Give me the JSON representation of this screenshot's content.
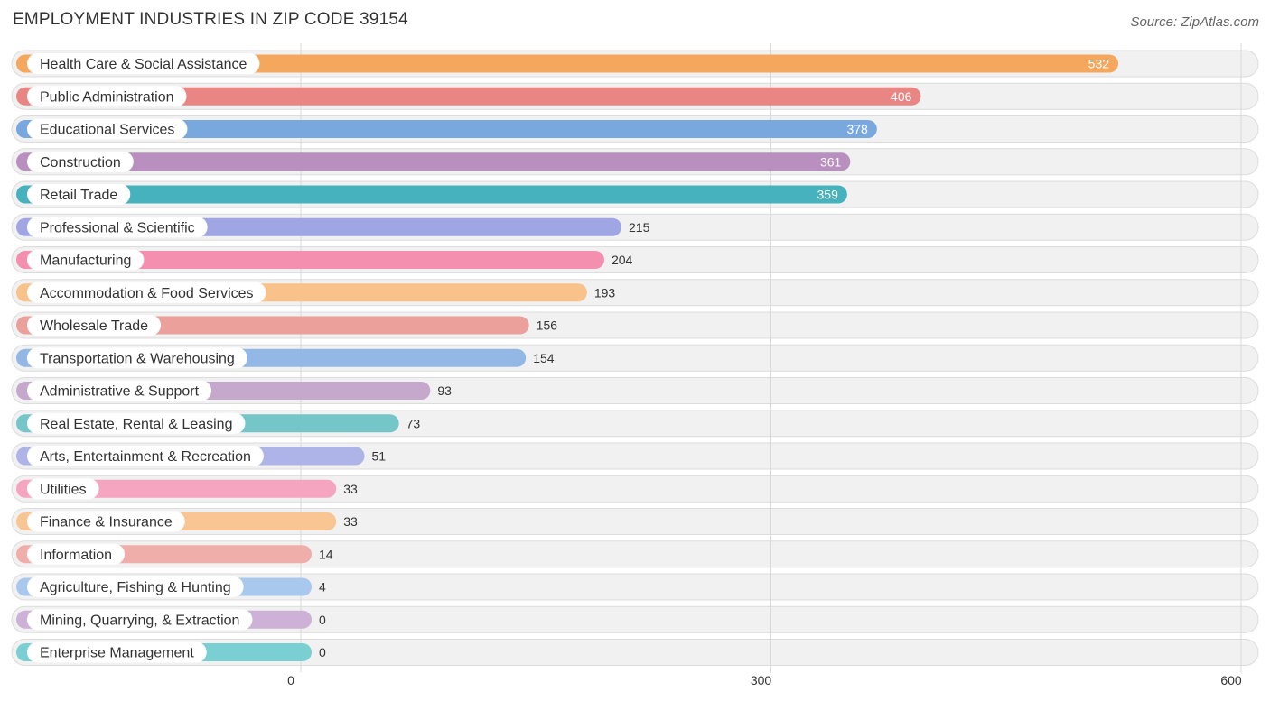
{
  "chart_data": {
    "type": "bar",
    "orientation": "horizontal",
    "title": "EMPLOYMENT INDUSTRIES IN ZIP CODE 39154",
    "source": "Source: ZipAtlas.com",
    "xlim": [
      0,
      600
    ],
    "xticks": [
      0,
      300,
      600
    ],
    "grid": true,
    "categories": [
      "Health Care & Social Assistance",
      "Public Administration",
      "Educational Services",
      "Construction",
      "Retail Trade",
      "Professional & Scientific",
      "Manufacturing",
      "Accommodation & Food Services",
      "Wholesale Trade",
      "Transportation & Warehousing",
      "Administrative & Support",
      "Real Estate, Rental & Leasing",
      "Arts, Entertainment & Recreation",
      "Utilities",
      "Finance & Insurance",
      "Information",
      "Agriculture, Fishing & Hunting",
      "Mining, Quarrying, & Extraction",
      "Enterprise Management"
    ],
    "values": [
      532,
      406,
      378,
      361,
      359,
      215,
      204,
      193,
      156,
      154,
      93,
      73,
      51,
      33,
      33,
      14,
      4,
      0,
      0
    ],
    "colors": [
      "#f6a75e",
      "#e98583",
      "#79a8de",
      "#b88fbf",
      "#45b2be",
      "#9fa6e3",
      "#f58fb0",
      "#f8c28a",
      "#eba09c",
      "#93b8e6",
      "#c6a8cd",
      "#74c6c9",
      "#aeb3e8",
      "#f6a5c0",
      "#f9c693",
      "#f0aeab",
      "#a9c8ed",
      "#cdb1d6",
      "#7acfd2"
    ]
  }
}
